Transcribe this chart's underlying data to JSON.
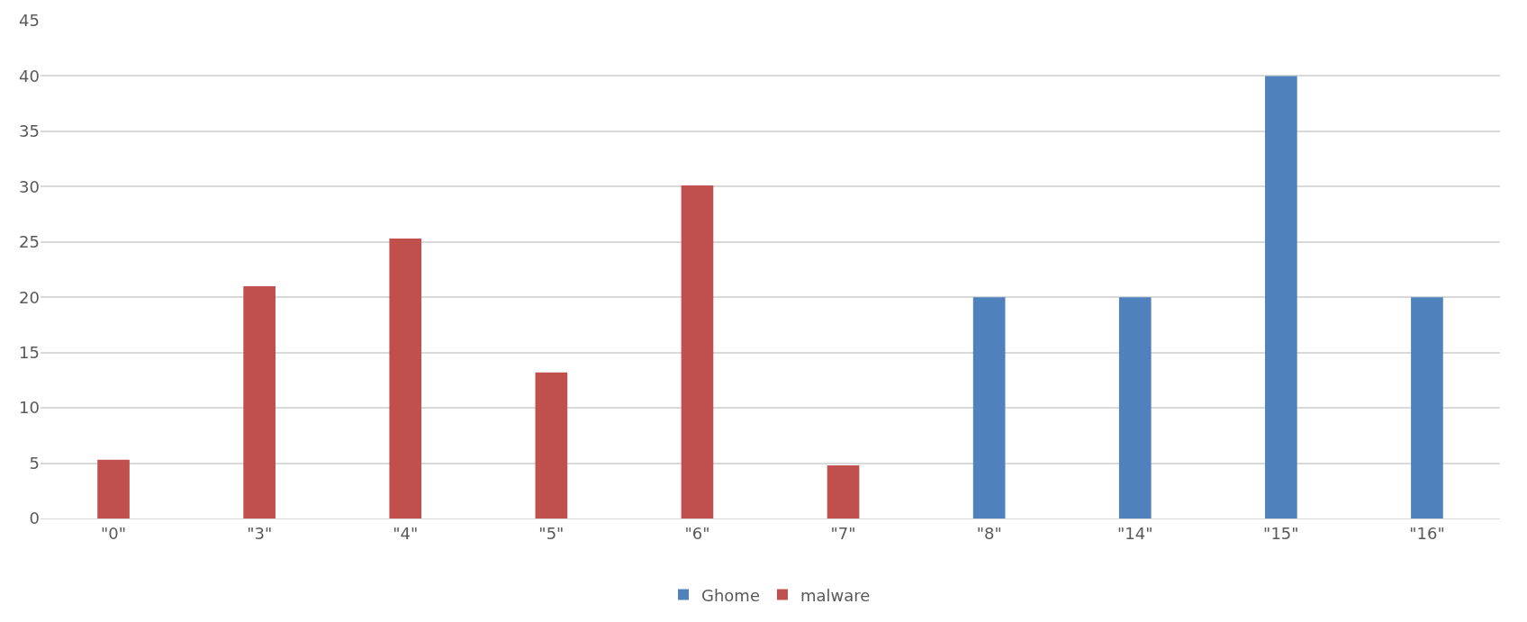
{
  "chart_data": {
    "type": "bar",
    "categories": [
      "\"0\"",
      "\"3\"",
      "\"4\"",
      "\"5\"",
      "\"6\"",
      "\"7\"",
      "\"8\"",
      "\"14\"",
      "\"15\"",
      "\"16\""
    ],
    "series": [
      {
        "name": "Ghome",
        "color": "#4f81bd",
        "values": [
          null,
          null,
          null,
          null,
          null,
          null,
          20,
          20,
          40,
          20
        ]
      },
      {
        "name": "malware",
        "color": "#c0504d",
        "values": [
          5.3,
          21,
          25.3,
          13.2,
          30.1,
          4.8,
          null,
          null,
          null,
          null
        ]
      }
    ],
    "ylim": [
      0,
      45
    ],
    "yticks": [
      0,
      5,
      10,
      15,
      20,
      25,
      30,
      35,
      40,
      45
    ],
    "grid": "y",
    "legend": "bottom"
  }
}
